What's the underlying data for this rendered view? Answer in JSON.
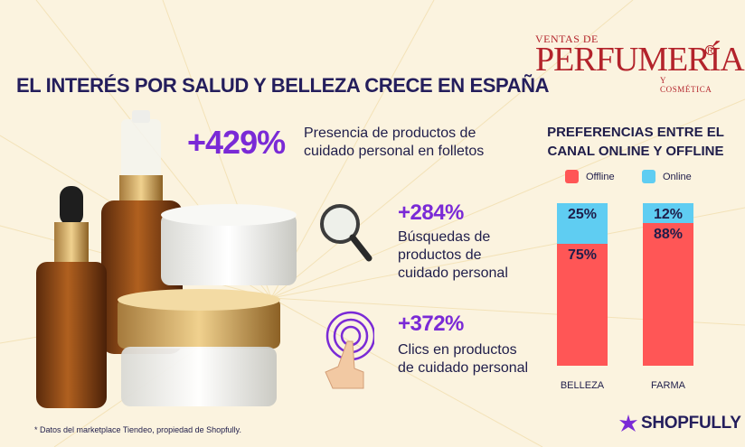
{
  "header": {
    "title": "EL INTERÉS POR SALUD Y BELLEZA CRECE EN ESPAÑA"
  },
  "logo": {
    "top": "VENTAS DE",
    "main": "PERFUMERÍA",
    "registered": "R",
    "sub": "Y COSMÉTICA"
  },
  "stats": [
    {
      "value": "+429%",
      "text_line1": "Presencia de productos de",
      "text_line2": "cuidado personal en folletos",
      "icon": "none"
    },
    {
      "value": "+284%",
      "text_line1": "Búsquedas de",
      "text_line2": "productos de",
      "text_line3": "cuidado personal",
      "icon": "magnifying-glass-icon"
    },
    {
      "value": "+372%",
      "text_line1": "Clics en productos",
      "text_line2": "de cuidado personal",
      "icon": "finger-tap-icon"
    }
  ],
  "chart_data": {
    "type": "bar",
    "stacked": true,
    "title": "PREFERENCIAS ENTRE EL CANAL ONLINE Y OFFLINE",
    "categories": [
      "BELLEZA",
      "FARMA"
    ],
    "series": [
      {
        "name": "Offline",
        "values": [
          75,
          88
        ],
        "labels": [
          "75%",
          "88%"
        ],
        "color": "#ff5656"
      },
      {
        "name": "Online",
        "values": [
          25,
          12
        ],
        "labels": [
          "25%",
          "12%"
        ],
        "color": "#5fcdf2"
      }
    ],
    "ylim": [
      0,
      100
    ],
    "legend": "top"
  },
  "footer": {
    "note": "* Datos del marketplace Tiendeo, propiedad de Shopfully.",
    "brand": "SHOPFULLY"
  },
  "colors": {
    "background": "#fbf3df",
    "accent_purple": "#7a2ad6",
    "navy": "#241e5c",
    "offline_red": "#ff5656",
    "online_blue": "#5fcdf2"
  }
}
